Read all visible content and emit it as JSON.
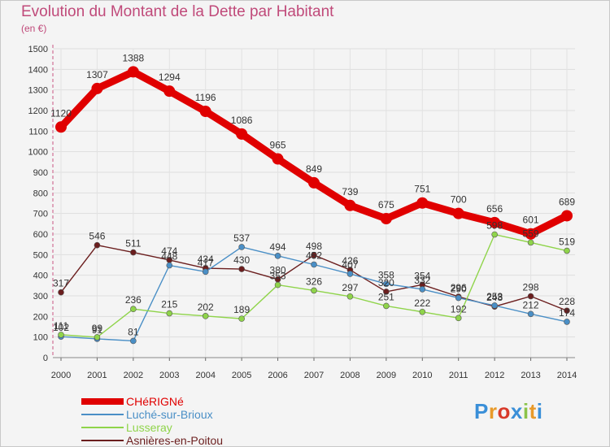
{
  "chart_data": {
    "type": "line",
    "title": "Evolution du Montant de la Dette par Habitant",
    "subtitle": "(en €)",
    "x": [
      "2000",
      "2001",
      "2002",
      "2003",
      "2004",
      "2005",
      "2006",
      "2007",
      "2008",
      "2009",
      "2010",
      "2011",
      "2012",
      "2013",
      "2014"
    ],
    "ylim": [
      0,
      1500
    ],
    "yticks": [
      0,
      100,
      200,
      300,
      400,
      500,
      600,
      700,
      800,
      900,
      1000,
      1100,
      1200,
      1300,
      1400,
      1500
    ],
    "grid": true,
    "legend": "bottom-left",
    "series": [
      {
        "name": "CHéRIGNé",
        "color": "#e00000",
        "values": [
          1120,
          1307,
          1388,
          1294,
          1196,
          1086,
          965,
          849,
          739,
          675,
          751,
          700,
          656,
          601,
          689
        ]
      },
      {
        "name": "Luché-sur-Brioux",
        "color": "#4a8fc6",
        "values": [
          102,
          91,
          81,
          448,
          417,
          537,
          494,
          452,
          407,
          358,
          332,
          290,
          253,
          212,
          174
        ]
      },
      {
        "name": "Lusseray",
        "color": "#8fd44a",
        "values": [
          111,
          99,
          236,
          215,
          202,
          189,
          353,
          326,
          297,
          251,
          222,
          192,
          598,
          559,
          519
        ]
      },
      {
        "name": "Asnières-en-Poitou",
        "color": "#6b1e1e",
        "values": [
          317,
          546,
          511,
          474,
          434,
          430,
          380,
          498,
          426,
          320,
          354,
          296,
          248,
          298,
          228
        ]
      }
    ]
  },
  "logo": {
    "text": "Proxiti",
    "letters": [
      "P",
      "r",
      "o",
      "x",
      "i",
      "t",
      "i"
    ],
    "colors": [
      "#3a8fd8",
      "#e89a2a",
      "#d83a2a",
      "#3a8fd8",
      "#8bc34a",
      "#e89a2a",
      "#3a8fd8"
    ]
  }
}
